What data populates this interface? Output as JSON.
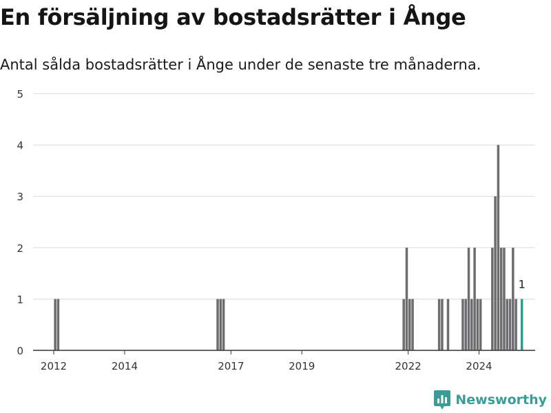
{
  "title": "En försäljning av bostadsrätter i Ånge",
  "subtitle": "Antal sålda bostadsrätter i Ånge under de senaste tre månaderna.",
  "brand": {
    "name": "Newsworthy",
    "logo_icon": "bar-chart-logo-icon",
    "color": "#3a9c96"
  },
  "chart_data": {
    "type": "bar",
    "ylim": [
      0,
      5
    ],
    "yticks": [
      "0",
      "1",
      "2",
      "3",
      "4",
      "5"
    ],
    "xlim": [
      "2011-06",
      "2025-08"
    ],
    "xticks": [
      "2012",
      "2014",
      "2017",
      "2019",
      "2022",
      "2024"
    ],
    "grid": true,
    "colors": {
      "bar": "#6d6d70",
      "highlight": "#2a9d8f"
    },
    "annotation": {
      "label": "1",
      "target": "2025-03"
    },
    "x": [
      "2012-01",
      "2012-02",
      "2016-08",
      "2016-09",
      "2016-10",
      "2021-11",
      "2021-12",
      "2022-01",
      "2022-02",
      "2022-11",
      "2022-12",
      "2023-02",
      "2023-07",
      "2023-08",
      "2023-09",
      "2023-10",
      "2023-11",
      "2023-12",
      "2024-01",
      "2024-02",
      "2024-05",
      "2024-06",
      "2024-07",
      "2024-08",
      "2024-09",
      "2024-10",
      "2024-11",
      "2024-12",
      "2025-01",
      "2025-02",
      "2025-03"
    ],
    "values": [
      1,
      1,
      1,
      1,
      1,
      1,
      2,
      1,
      1,
      1,
      1,
      1,
      1,
      1,
      2,
      1,
      2,
      1,
      1,
      0,
      2,
      3,
      4,
      2,
      2,
      1,
      1,
      2,
      1,
      0,
      1
    ],
    "highlight": [
      false,
      false,
      false,
      false,
      false,
      false,
      false,
      false,
      false,
      false,
      false,
      false,
      false,
      false,
      false,
      false,
      false,
      false,
      false,
      false,
      false,
      false,
      false,
      false,
      false,
      false,
      false,
      false,
      false,
      false,
      true
    ]
  }
}
